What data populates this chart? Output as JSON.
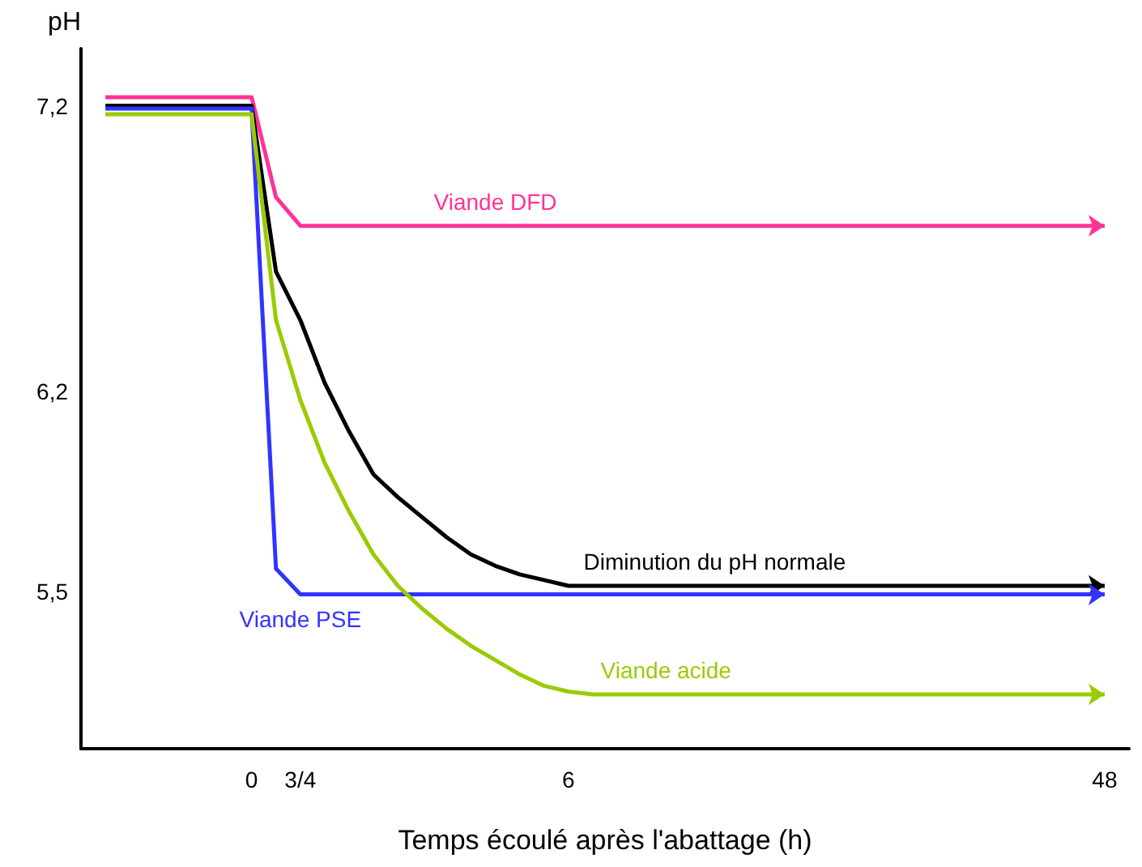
{
  "chart_data": {
    "type": "line",
    "xlabel": "Temps écoulé après l'abattage (h)",
    "ylabel": "pH",
    "categories": [
      null,
      null,
      null,
      null,
      null,
      null,
      null,
      "0",
      null,
      "3/4",
      null,
      null,
      null,
      null,
      null,
      null,
      null,
      null,
      null,
      null,
      "6",
      null,
      null,
      null,
      null,
      null,
      null,
      null,
      null,
      null,
      null,
      null,
      null,
      null,
      null,
      null,
      null,
      null,
      null,
      null,
      null,
      null,
      "48",
      null
    ],
    "ylim": [
      4.95,
      7.4
    ],
    "yticks": [
      {
        "value": 5.5,
        "label": "5,5"
      },
      {
        "value": 6.2,
        "label": "6,2"
      },
      {
        "value": 7.2,
        "label": "7,2"
      }
    ],
    "grid": false,
    "legend": false,
    "series": [
      {
        "name": "Viande DFD",
        "color": "#ff3399",
        "values": [
          null,
          7.23,
          7.23,
          7.23,
          7.23,
          7.23,
          7.23,
          7.23,
          6.88,
          6.78,
          6.78,
          6.78,
          6.78,
          6.78,
          6.78,
          6.78,
          6.78,
          6.78,
          6.78,
          6.78,
          6.78,
          6.78,
          6.78,
          6.78,
          6.78,
          6.78,
          6.78,
          6.78,
          6.78,
          6.78,
          6.78,
          6.78,
          6.78,
          6.78,
          6.78,
          6.78,
          6.78,
          6.78,
          6.78,
          6.78,
          6.78,
          6.78,
          6.78,
          null
        ]
      },
      {
        "name": "Diminution du pH normale",
        "color": "#000000",
        "values": [
          null,
          7.2,
          7.2,
          7.2,
          7.2,
          7.2,
          7.2,
          7.2,
          6.62,
          6.45,
          6.23,
          6.06,
          5.91,
          5.83,
          5.76,
          5.69,
          5.63,
          5.59,
          5.56,
          5.54,
          5.52,
          5.52,
          5.52,
          5.52,
          5.52,
          5.52,
          5.52,
          5.52,
          5.52,
          5.52,
          5.52,
          5.52,
          5.52,
          5.52,
          5.52,
          5.52,
          5.52,
          5.52,
          5.52,
          5.52,
          5.52,
          5.52,
          5.52,
          null
        ]
      },
      {
        "name": "Viande PSE",
        "color": "#3333ff",
        "values": [
          null,
          7.19,
          7.19,
          7.19,
          7.19,
          7.19,
          7.19,
          7.19,
          5.58,
          5.49,
          5.49,
          5.49,
          5.49,
          5.49,
          5.49,
          5.49,
          5.49,
          5.49,
          5.49,
          5.49,
          5.49,
          5.49,
          5.49,
          5.49,
          5.49,
          5.49,
          5.49,
          5.49,
          5.49,
          5.49,
          5.49,
          5.49,
          5.49,
          5.49,
          5.49,
          5.49,
          5.49,
          5.49,
          5.49,
          5.49,
          5.49,
          5.49,
          5.49,
          null
        ]
      },
      {
        "name": "Viande acide",
        "color": "#99cc00",
        "values": [
          null,
          7.17,
          7.17,
          7.17,
          7.17,
          7.17,
          7.17,
          7.17,
          6.45,
          6.17,
          5.95,
          5.78,
          5.63,
          5.52,
          5.44,
          5.37,
          5.31,
          5.26,
          5.21,
          5.17,
          5.15,
          5.14,
          5.14,
          5.14,
          5.14,
          5.14,
          5.14,
          5.14,
          5.14,
          5.14,
          5.14,
          5.14,
          5.14,
          5.14,
          5.14,
          5.14,
          5.14,
          5.14,
          5.14,
          5.14,
          5.14,
          5.14,
          5.14,
          null
        ]
      }
    ]
  }
}
